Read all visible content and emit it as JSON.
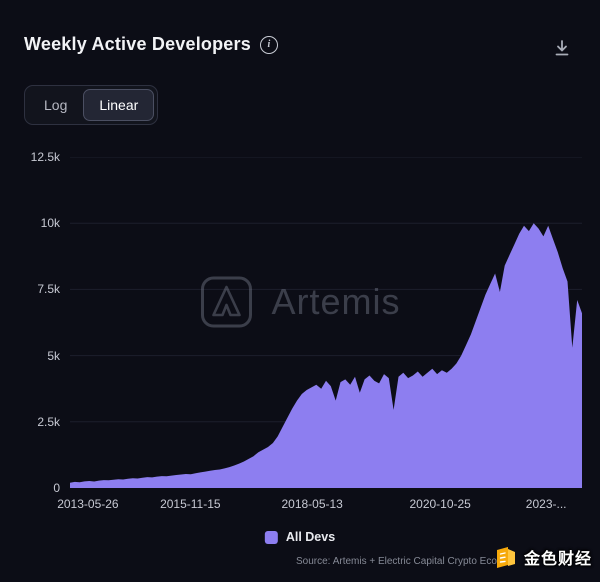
{
  "header": {
    "title": "Weekly Active Developers",
    "info_icon_glyph": "i",
    "download_icon": "download-icon"
  },
  "toggle": {
    "options": [
      {
        "label": "Log",
        "selected": false
      },
      {
        "label": "Linear",
        "selected": true
      }
    ]
  },
  "chart_data": {
    "type": "area",
    "title": "Weekly Active Developers",
    "ylabel": "",
    "xlabel": "",
    "ylim": [
      0,
      12500
    ],
    "grid": true,
    "legend_position": "bottom",
    "y_ticks": [
      {
        "label": "0",
        "value": 0
      },
      {
        "label": "2.5k",
        "value": 2500
      },
      {
        "label": "5k",
        "value": 5000
      },
      {
        "label": "7.5k",
        "value": 7500
      },
      {
        "label": "10k",
        "value": 10000
      },
      {
        "label": "12.5k",
        "value": 12500
      }
    ],
    "x_ticks": [
      {
        "label": "2013-05-26",
        "pos": 0.035
      },
      {
        "label": "2015-11-15",
        "pos": 0.235
      },
      {
        "label": "2018-05-13",
        "pos": 0.473
      },
      {
        "label": "2020-10-25",
        "pos": 0.723
      },
      {
        "label": "2023-...",
        "pos": 0.93
      }
    ],
    "series": [
      {
        "name": "All Devs",
        "color": "#8d7ef0",
        "values": [
          200,
          230,
          215,
          250,
          265,
          245,
          280,
          300,
          290,
          315,
          330,
          320,
          350,
          370,
          360,
          390,
          410,
          400,
          430,
          450,
          440,
          470,
          490,
          510,
          530,
          520,
          560,
          590,
          620,
          650,
          680,
          700,
          740,
          790,
          850,
          920,
          1000,
          1100,
          1200,
          1350,
          1450,
          1550,
          1700,
          1950,
          2300,
          2650,
          3000,
          3300,
          3550,
          3700,
          3800,
          3900,
          3750,
          4050,
          3850,
          3300,
          4000,
          4100,
          3900,
          4200,
          3600,
          4100,
          4250,
          4050,
          3950,
          4300,
          4150,
          2950,
          4200,
          4350,
          4150,
          4250,
          4400,
          4200,
          4350,
          4500,
          4300,
          4450,
          4350,
          4500,
          4700,
          5000,
          5400,
          5800,
          6300,
          6800,
          7300,
          7700,
          8100,
          7400,
          8400,
          8800,
          9200,
          9600,
          9900,
          9700,
          10000,
          9800,
          9500,
          9900,
          9400,
          8900,
          8300,
          7800,
          5300,
          7100,
          6600
        ]
      }
    ]
  },
  "legend": {
    "items": [
      {
        "label": "All Devs",
        "color": "#8d7ef0"
      }
    ]
  },
  "watermark": {
    "text": "Artemis"
  },
  "footer": {
    "source": "Source: Artemis + Electric Capital Crypto Ecosys",
    "badge_text": "金色财经"
  }
}
